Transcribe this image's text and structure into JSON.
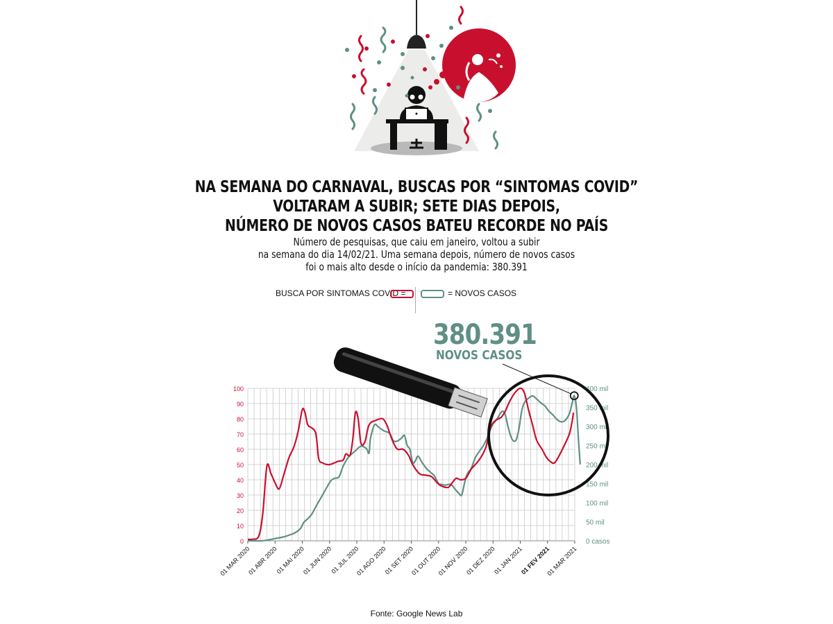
{
  "title_lines": [
    "NA SEMANA DO CARNAVAL, BUSCAS POR “SINTOMAS COVID”",
    "VOLTARAM A SUBIR; SETE DIAS DEPOIS,",
    "NÚMERO DE NOVOS CASOS BATEU RECORDE NO PAÍS"
  ],
  "subtitle_lines": [
    "Número de pesquisas, que caiu em janeiro, voltou a subir",
    "na semana do dia 14/02/21. Uma semana depois, número de novos casos",
    "foi o mais alto desde o início da pandemia: 380.391"
  ],
  "legend": {
    "search_label": "BUSCA POR SINTOMAS COVID  =",
    "cases_label": "= NOVOS CASOS"
  },
  "callout": {
    "value": "380.391",
    "label": "NOVOS CASOS"
  },
  "source": "Fonte: Google News Lab",
  "colors": {
    "search": "#c8102e",
    "cases": "#5f8f85",
    "grid": "#c8c8c8",
    "text": "#111111"
  },
  "chart_data": {
    "type": "line",
    "grid": true,
    "x_ticks": [
      "01 MAR 2020",
      "01 ABR 2020",
      "01 MAI 2020",
      "01 JUN 2020",
      "01 JUL 2020",
      "01 AGO 2020",
      "01 SET 2020",
      "01 OUT 2020",
      "01 NOV 2020",
      "01 DEZ 2020",
      "01 JAN 2021",
      "01 FEV 2021",
      "01 MAR 2021"
    ],
    "x_range": [
      0,
      12
    ],
    "y_left": {
      "ticks": [
        0,
        10,
        20,
        30,
        40,
        50,
        60,
        70,
        80,
        90,
        100
      ],
      "range": [
        0,
        100
      ]
    },
    "y_right": {
      "ticks": [
        "0 casos",
        "50 mil",
        "100 mil",
        "150 mil",
        "200 mil",
        "250 mil",
        "300 mil",
        "350 mil",
        "400 mil"
      ],
      "range": [
        0,
        400000
      ]
    },
    "series": [
      {
        "name": "BUSCA POR SINTOMAS COVID",
        "axis": "left",
        "points": [
          [
            0,
            1
          ],
          [
            0.15,
            1
          ],
          [
            0.4,
            3
          ],
          [
            0.55,
            18
          ],
          [
            0.7,
            49
          ],
          [
            0.85,
            44
          ],
          [
            1.0,
            38
          ],
          [
            1.15,
            34
          ],
          [
            1.3,
            42
          ],
          [
            1.5,
            54
          ],
          [
            1.7,
            62
          ],
          [
            1.85,
            72
          ],
          [
            2.0,
            86
          ],
          [
            2.1,
            84
          ],
          [
            2.2,
            76
          ],
          [
            2.35,
            74
          ],
          [
            2.5,
            70
          ],
          [
            2.6,
            54
          ],
          [
            2.75,
            51
          ],
          [
            3.0,
            50
          ],
          [
            3.3,
            52
          ],
          [
            3.5,
            53
          ],
          [
            3.6,
            57
          ],
          [
            3.75,
            56
          ],
          [
            3.85,
            66
          ],
          [
            3.95,
            84
          ],
          [
            4.05,
            80
          ],
          [
            4.15,
            64
          ],
          [
            4.3,
            65
          ],
          [
            4.45,
            76
          ],
          [
            4.7,
            79
          ],
          [
            4.95,
            80
          ],
          [
            5.1,
            76
          ],
          [
            5.2,
            71
          ],
          [
            5.35,
            64
          ],
          [
            5.5,
            60
          ],
          [
            5.7,
            60
          ],
          [
            5.9,
            56
          ],
          [
            6.05,
            50
          ],
          [
            6.3,
            44
          ],
          [
            6.55,
            43
          ],
          [
            6.75,
            42
          ],
          [
            6.95,
            38
          ],
          [
            7.1,
            36
          ],
          [
            7.35,
            35
          ],
          [
            7.5,
            38
          ],
          [
            7.65,
            41
          ],
          [
            7.8,
            40
          ],
          [
            8.0,
            41
          ],
          [
            8.2,
            47
          ],
          [
            8.4,
            51
          ],
          [
            8.6,
            56
          ],
          [
            8.75,
            62
          ],
          [
            8.85,
            70
          ],
          [
            8.95,
            76
          ],
          [
            9.1,
            79
          ],
          [
            9.3,
            81
          ],
          [
            9.45,
            85
          ],
          [
            9.6,
            91
          ],
          [
            9.8,
            97
          ],
          [
            10.0,
            100
          ],
          [
            10.15,
            97
          ],
          [
            10.3,
            86
          ],
          [
            10.45,
            76
          ],
          [
            10.6,
            66
          ],
          [
            10.8,
            60
          ],
          [
            10.95,
            55
          ],
          [
            11.1,
            52
          ],
          [
            11.25,
            51
          ],
          [
            11.4,
            55
          ],
          [
            11.6,
            62
          ],
          [
            11.8,
            70
          ],
          [
            11.9,
            78
          ],
          [
            11.95,
            84
          ]
        ]
      },
      {
        "name": "NOVOS CASOS",
        "axis": "right",
        "points": [
          [
            0,
            0
          ],
          [
            0.5,
            0
          ],
          [
            0.8,
            3000
          ],
          [
            1.0,
            6000
          ],
          [
            1.3,
            10000
          ],
          [
            1.6,
            17000
          ],
          [
            1.8,
            24000
          ],
          [
            1.95,
            34000
          ],
          [
            2.05,
            48000
          ],
          [
            2.2,
            58000
          ],
          [
            2.35,
            70000
          ],
          [
            2.5,
            90000
          ],
          [
            2.7,
            115000
          ],
          [
            2.9,
            140000
          ],
          [
            3.05,
            158000
          ],
          [
            3.2,
            164000
          ],
          [
            3.35,
            168000
          ],
          [
            3.5,
            196000
          ],
          [
            3.7,
            220000
          ],
          [
            3.95,
            236000
          ],
          [
            4.15,
            248000
          ],
          [
            4.35,
            242000
          ],
          [
            4.45,
            230000
          ],
          [
            4.5,
            268000
          ],
          [
            4.65,
            304000
          ],
          [
            4.8,
            298000
          ],
          [
            5.0,
            288000
          ],
          [
            5.2,
            282000
          ],
          [
            5.35,
            262000
          ],
          [
            5.5,
            262000
          ],
          [
            5.65,
            270000
          ],
          [
            5.75,
            276000
          ],
          [
            5.85,
            250000
          ],
          [
            5.95,
            240000
          ],
          [
            6.05,
            205000
          ],
          [
            6.15,
            210000
          ],
          [
            6.25,
            222000
          ],
          [
            6.4,
            205000
          ],
          [
            6.55,
            190000
          ],
          [
            6.7,
            180000
          ],
          [
            6.85,
            170000
          ],
          [
            7.0,
            150000
          ],
          [
            7.1,
            148000
          ],
          [
            7.25,
            146000
          ],
          [
            7.45,
            148000
          ],
          [
            7.6,
            136000
          ],
          [
            7.75,
            124000
          ],
          [
            7.85,
            120000
          ],
          [
            7.95,
            150000
          ],
          [
            8.05,
            175000
          ],
          [
            8.2,
            190000
          ],
          [
            8.35,
            218000
          ],
          [
            8.5,
            235000
          ],
          [
            8.65,
            250000
          ],
          [
            8.8,
            272000
          ],
          [
            8.95,
            300000
          ],
          [
            9.15,
            320000
          ],
          [
            9.25,
            332000
          ],
          [
            9.35,
            340000
          ],
          [
            9.45,
            330000
          ],
          [
            9.55,
            300000
          ],
          [
            9.65,
            274000
          ],
          [
            9.75,
            262000
          ],
          [
            9.85,
            265000
          ],
          [
            9.95,
            293000
          ],
          [
            10.05,
            340000
          ],
          [
            10.15,
            362000
          ],
          [
            10.3,
            374000
          ],
          [
            10.45,
            380000
          ],
          [
            10.6,
            372000
          ],
          [
            10.75,
            362000
          ],
          [
            10.9,
            354000
          ],
          [
            11.05,
            340000
          ],
          [
            11.2,
            330000
          ],
          [
            11.35,
            318000
          ],
          [
            11.5,
            312000
          ],
          [
            11.65,
            316000
          ],
          [
            11.8,
            333000
          ],
          [
            11.9,
            360000
          ],
          [
            11.98,
            380391
          ],
          [
            12.06,
            350000
          ],
          [
            12.14,
            260000
          ],
          [
            12.2,
            200000
          ]
        ]
      }
    ],
    "peak_annotation": {
      "x": 11.98,
      "value": 380391,
      "text": "380.391 NOVOS CASOS"
    }
  }
}
